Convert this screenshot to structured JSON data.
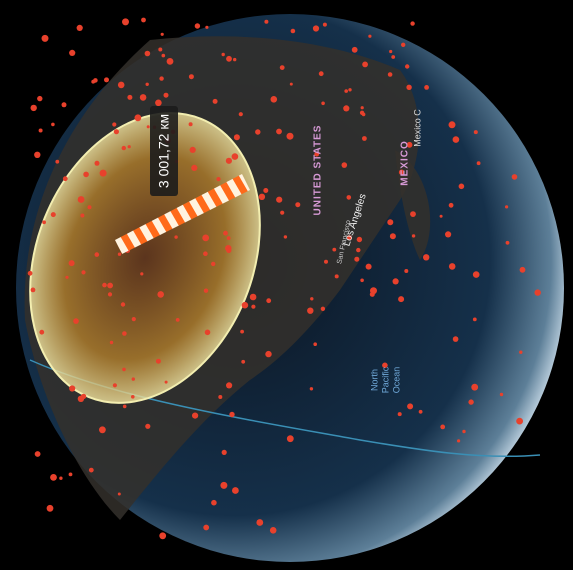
{
  "measurement": {
    "label": "3 001,72 км"
  },
  "places": {
    "country_us": "UNITED STATES",
    "country_mx": "MEXICO",
    "city_mexico": "Mexico C",
    "city_la": "Los Angeles",
    "city_sf": "San Francisco",
    "ocean": [
      "North",
      "Pacific",
      "Ocean"
    ]
  }
}
